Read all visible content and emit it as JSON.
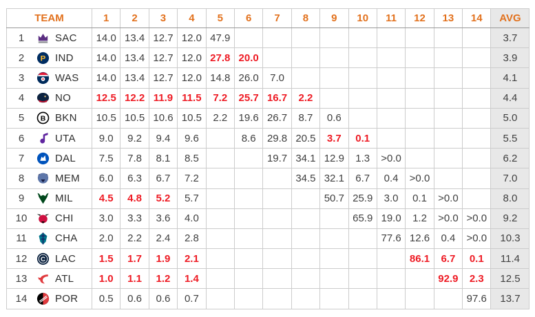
{
  "table": {
    "header": {
      "team_label": "TEAM",
      "pick_columns": [
        "1",
        "2",
        "3",
        "4",
        "5",
        "6",
        "7",
        "8",
        "9",
        "10",
        "11",
        "12",
        "13",
        "14"
      ],
      "avg_label": "AVG"
    },
    "rows": [
      {
        "rank": "1",
        "team": "SAC",
        "logo_icon": "sacramento-kings-logo",
        "logo_colors": [
          "#5a2d81",
          "#8e9095"
        ],
        "odds": [
          "14.0",
          "13.4",
          "12.7",
          "12.0",
          "47.9",
          "",
          "",
          "",
          "",
          "",
          "",
          "",
          "",
          ""
        ],
        "red": [],
        "avg": "3.7"
      },
      {
        "rank": "2",
        "team": "IND",
        "logo_icon": "indiana-pacers-logo",
        "logo_colors": [
          "#002d62",
          "#fdbb30"
        ],
        "odds": [
          "14.0",
          "13.4",
          "12.7",
          "12.0",
          "27.8",
          "20.0",
          "",
          "",
          "",
          "",
          "",
          "",
          "",
          ""
        ],
        "red": [
          4,
          5
        ],
        "avg": "3.9"
      },
      {
        "rank": "3",
        "team": "WAS",
        "logo_icon": "washington-wizards-logo",
        "logo_colors": [
          "#002b5c",
          "#e31837"
        ],
        "odds": [
          "14.0",
          "13.4",
          "12.7",
          "12.0",
          "14.8",
          "26.0",
          "7.0",
          "",
          "",
          "",
          "",
          "",
          "",
          ""
        ],
        "red": [],
        "avg": "4.1"
      },
      {
        "rank": "4",
        "team": "NO",
        "logo_icon": "new-orleans-pelicans-logo",
        "logo_colors": [
          "#0c2340",
          "#c8102e"
        ],
        "odds": [
          "12.5",
          "12.2",
          "11.9",
          "11.5",
          "7.2",
          "25.7",
          "16.7",
          "2.2",
          "",
          "",
          "",
          "",
          "",
          ""
        ],
        "red": [
          0,
          1,
          2,
          3,
          4,
          5,
          6,
          7
        ],
        "avg": "4.4"
      },
      {
        "rank": "5",
        "team": "BKN",
        "logo_icon": "brooklyn-nets-logo",
        "logo_colors": [
          "#000000",
          "#ffffff"
        ],
        "odds": [
          "10.5",
          "10.5",
          "10.6",
          "10.5",
          "2.2",
          "19.6",
          "26.7",
          "8.7",
          "0.6",
          "",
          "",
          "",
          "",
          ""
        ],
        "red": [],
        "avg": "5.0"
      },
      {
        "rank": "6",
        "team": "UTA",
        "logo_icon": "utah-jazz-logo",
        "logo_colors": [
          "#5f259f",
          "#f9a01b"
        ],
        "odds": [
          "9.0",
          "9.2",
          "9.4",
          "9.6",
          "",
          "8.6",
          "29.8",
          "20.5",
          "3.7",
          "0.1",
          "",
          "",
          "",
          ""
        ],
        "red": [
          8,
          9
        ],
        "avg": "5.5"
      },
      {
        "rank": "7",
        "team": "DAL",
        "logo_icon": "dallas-mavericks-logo",
        "logo_colors": [
          "#0053bc",
          "#ffffff"
        ],
        "odds": [
          "7.5",
          "7.8",
          "8.1",
          "8.5",
          "",
          "",
          "19.7",
          "34.1",
          "12.9",
          "1.3",
          ">0.0",
          "",
          "",
          ""
        ],
        "red": [],
        "avg": "6.2"
      },
      {
        "rank": "8",
        "team": "MEM",
        "logo_icon": "memphis-grizzlies-logo",
        "logo_colors": [
          "#12173f",
          "#5d76a9"
        ],
        "odds": [
          "6.0",
          "6.3",
          "6.7",
          "7.2",
          "",
          "",
          "",
          "34.5",
          "32.1",
          "6.7",
          "0.4",
          ">0.0",
          "",
          ""
        ],
        "red": [],
        "avg": "7.0"
      },
      {
        "rank": "9",
        "team": "MIL",
        "logo_icon": "milwaukee-bucks-logo",
        "logo_colors": [
          "#00471b",
          "#eee1c6"
        ],
        "odds": [
          "4.5",
          "4.8",
          "5.2",
          "5.7",
          "",
          "",
          "",
          "",
          "50.7",
          "25.9",
          "3.0",
          "0.1",
          ">0.0",
          ""
        ],
        "red": [
          0,
          1,
          2
        ],
        "avg": "8.0"
      },
      {
        "rank": "10",
        "team": "CHI",
        "logo_icon": "chicago-bulls-logo",
        "logo_colors": [
          "#ce1141",
          "#000000"
        ],
        "odds": [
          "3.0",
          "3.3",
          "3.6",
          "4.0",
          "",
          "",
          "",
          "",
          "",
          "65.9",
          "19.0",
          "1.2",
          ">0.0",
          ">0.0"
        ],
        "red": [],
        "avg": "9.2"
      },
      {
        "rank": "11",
        "team": "CHA",
        "logo_icon": "charlotte-hornets-logo",
        "logo_colors": [
          "#00788c",
          "#1d1160"
        ],
        "odds": [
          "2.0",
          "2.2",
          "2.4",
          "2.8",
          "",
          "",
          "",
          "",
          "",
          "",
          "77.6",
          "12.6",
          "0.4",
          ">0.0"
        ],
        "red": [],
        "avg": "10.3"
      },
      {
        "rank": "12",
        "team": "LAC",
        "logo_icon": "la-clippers-logo",
        "logo_colors": [
          "#0c2340",
          "#ffffff"
        ],
        "odds": [
          "1.5",
          "1.7",
          "1.9",
          "2.1",
          "",
          "",
          "",
          "",
          "",
          "",
          "",
          "86.1",
          "6.7",
          "0.1"
        ],
        "red": [
          0,
          1,
          2,
          3,
          11,
          12,
          13
        ],
        "avg": "11.4"
      },
      {
        "rank": "13",
        "team": "ATL",
        "logo_icon": "atlanta-hawks-logo",
        "logo_colors": [
          "#e03a3e",
          "#ffffff"
        ],
        "odds": [
          "1.0",
          "1.1",
          "1.2",
          "1.4",
          "",
          "",
          "",
          "",
          "",
          "",
          "",
          "",
          "92.9",
          "2.3"
        ],
        "red": [
          0,
          1,
          2,
          3,
          12,
          13
        ],
        "avg": "12.5"
      },
      {
        "rank": "14",
        "team": "POR",
        "logo_icon": "portland-trail-blazers-logo",
        "logo_colors": [
          "#e03a3e",
          "#000000"
        ],
        "odds": [
          "0.5",
          "0.6",
          "0.6",
          "0.7",
          "",
          "",
          "",
          "",
          "",
          "",
          "",
          "",
          "",
          "97.6"
        ],
        "red": [],
        "avg": "13.7"
      }
    ]
  },
  "colors": {
    "header_text": "#e2711d",
    "red_value": "#ee1b24",
    "value_text": "#3f3f3f",
    "avg_column_bg": "#e8e8e8",
    "grid_border": "#cccccc",
    "header_divider": "#999999"
  }
}
